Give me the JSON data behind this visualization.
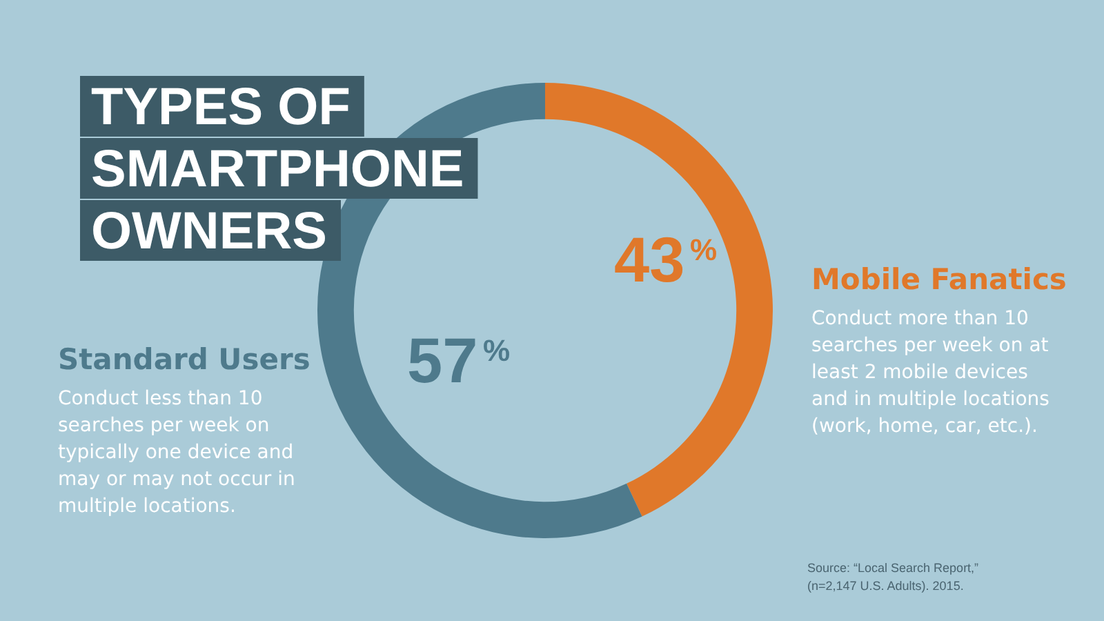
{
  "chart_data": {
    "type": "donut",
    "title": "TYPES OF\nSMARTPHONE\nOWNERS",
    "categories": [
      "Mobile Fanatics",
      "Standard Users"
    ],
    "values": [
      43,
      57
    ],
    "colors": [
      "#e0782a",
      "#4e7a8c"
    ],
    "value_labels": [
      "43%",
      "57%"
    ],
    "annotations": [
      "Conduct more than 10\nsearches per week on at\nleast 2 mobile devices\nand in multiple locations\n(work, home, car, etc.).",
      "Conduct less than 10\nsearches per week on\ntypically one device and\nmay or may not occur in\nmultiple locations.",
      "Source: “Local Search Report,”\n(n=2,147 U.S. Adults). 2015."
    ],
    "legend": false
  }
}
